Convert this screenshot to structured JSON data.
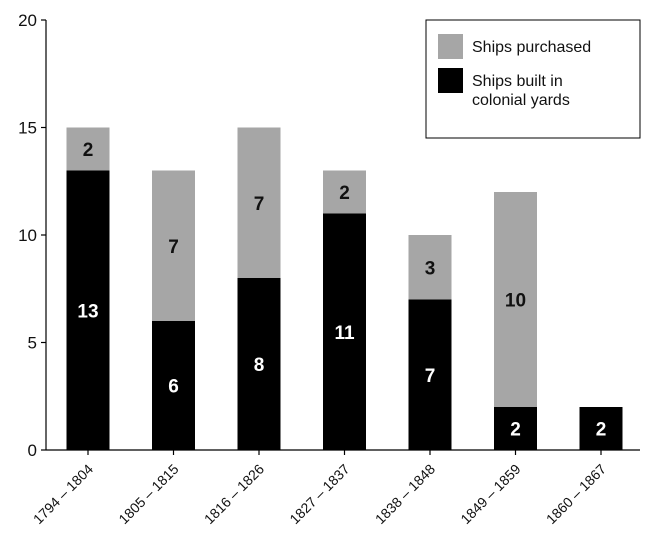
{
  "chart_data": {
    "type": "bar",
    "stacked": true,
    "categories": [
      "1794 – 1804",
      "1805 – 1815",
      "1816 – 1826",
      "1827 – 1837",
      "1838 – 1848",
      "1849 – 1859",
      "1860 – 1867"
    ],
    "series": [
      {
        "name": "Ships built in colonial yards",
        "values": [
          13,
          6,
          8,
          11,
          7,
          2,
          2
        ],
        "color": "#000000",
        "label_color": "#ffffff"
      },
      {
        "name": "Ships purchased",
        "values": [
          2,
          7,
          7,
          2,
          3,
          10,
          0
        ],
        "color": "#a6a6a6",
        "label_color": "#111111"
      }
    ],
    "ylim": [
      0,
      20
    ],
    "yticks": [
      "0",
      "5",
      "10",
      "15",
      "20"
    ],
    "grid": false,
    "legend": {
      "position": "top-right",
      "entries": [
        {
          "text_lines": [
            "Ships purchased"
          ],
          "color": "#a6a6a6"
        },
        {
          "text_lines": [
            "Ships built in",
            "colonial yards"
          ],
          "color": "#000000"
        }
      ]
    }
  }
}
